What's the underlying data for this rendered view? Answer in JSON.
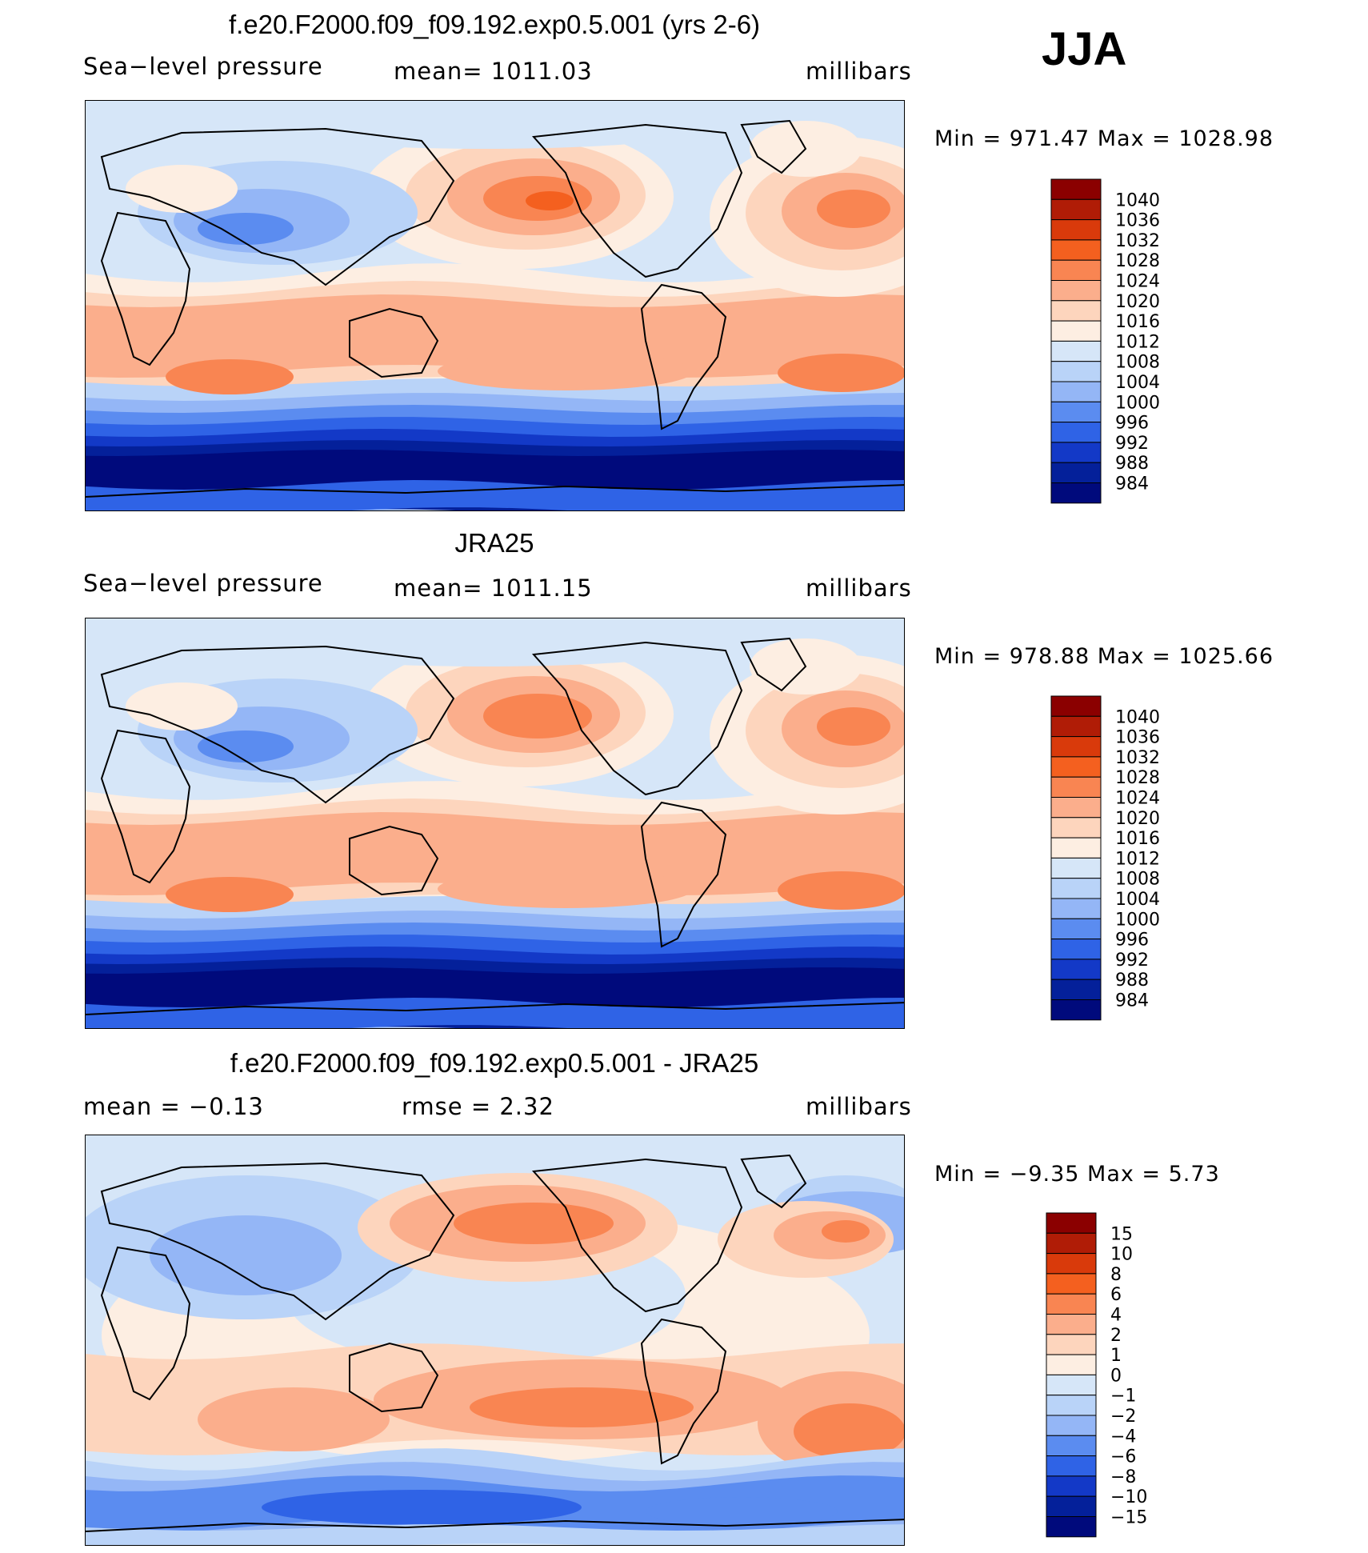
{
  "season": "JJA",
  "panels": [
    {
      "title": "f.e20.F2000.f09_f09.192.exp0.5.001 (yrs 2-6)",
      "left_label": "Sea−level  pressure",
      "center_label": "mean=  1011.03",
      "units": "millibars",
      "minmax": "Min  =  971.47  Max  =  1028.98",
      "levels": [
        "1040",
        "1036",
        "1032",
        "1028",
        "1024",
        "1020",
        "1016",
        "1012",
        "1008",
        "1004",
        "1000",
        "996",
        "992",
        "988",
        "984"
      ],
      "colors": [
        "#8b0000",
        "#b01c06",
        "#d93a0b",
        "#f4601f",
        "#f98552",
        "#fbae8c",
        "#fdd5bd",
        "#fdeee2",
        "#d6e6f8",
        "#b9d3f8",
        "#94b6f6",
        "#5b8cf0",
        "#2f63e6",
        "#1339c7",
        "#04209a",
        "#000a7c"
      ],
      "map_type": "abs"
    },
    {
      "title": "JRA25",
      "left_label": "Sea−level  pressure",
      "center_label": "mean=  1011.15",
      "units": "millibars",
      "minmax": "Min  =  978.88  Max  =  1025.66",
      "levels": [
        "1040",
        "1036",
        "1032",
        "1028",
        "1024",
        "1020",
        "1016",
        "1012",
        "1008",
        "1004",
        "1000",
        "996",
        "992",
        "988",
        "984"
      ],
      "colors": [
        "#8b0000",
        "#b01c06",
        "#d93a0b",
        "#f4601f",
        "#f98552",
        "#fbae8c",
        "#fdd5bd",
        "#fdeee2",
        "#d6e6f8",
        "#b9d3f8",
        "#94b6f6",
        "#5b8cf0",
        "#2f63e6",
        "#1339c7",
        "#04209a",
        "#000a7c"
      ],
      "map_type": "obs"
    },
    {
      "title": "f.e20.F2000.f09_f09.192.exp0.5.001 - JRA25",
      "left_label": "mean  =     −0.13",
      "center_label": "rmse  =     2.32",
      "units": "millibars",
      "minmax": "Min  =    −9.35  Max  =     5.73",
      "levels": [
        "15",
        "10",
        "8",
        "6",
        "4",
        "2",
        "1",
        "0",
        "−1",
        "−2",
        "−4",
        "−6",
        "−8",
        "−10",
        "−15"
      ],
      "colors": [
        "#8b0000",
        "#b01c06",
        "#d93a0b",
        "#f4601f",
        "#f98552",
        "#fbae8c",
        "#fdd5bd",
        "#fdeee2",
        "#d6e6f8",
        "#b9d3f8",
        "#94b6f6",
        "#5b8cf0",
        "#2f63e6",
        "#1339c7",
        "#04209a",
        "#000a7c"
      ],
      "map_type": "diff"
    }
  ]
}
